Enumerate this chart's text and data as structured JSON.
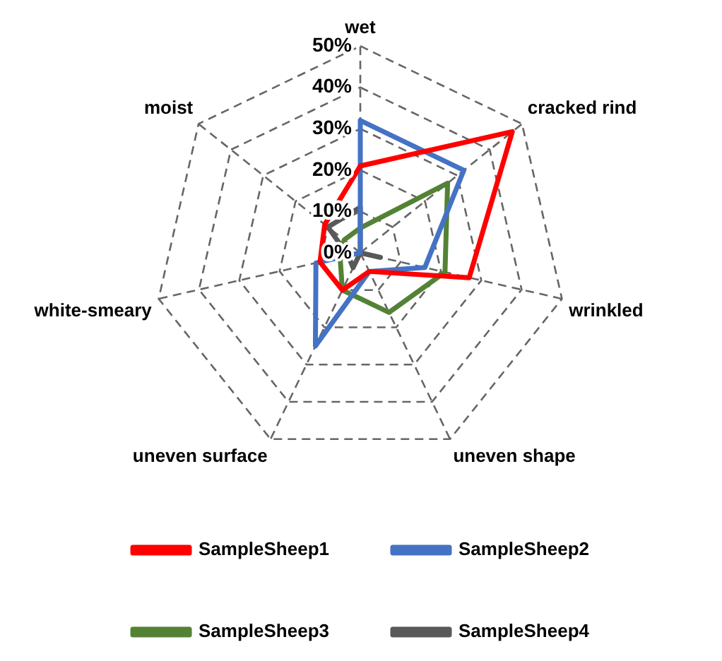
{
  "chart_data": {
    "type": "radar",
    "categories": [
      "wet",
      "cracked rind",
      "wrinkled",
      "uneven shape",
      "uneven surface",
      "white-smeary",
      "moist"
    ],
    "series": [
      {
        "name": "SampleSheep1",
        "color": "#ff0000",
        "values": [
          21,
          47,
          27,
          5,
          10,
          10,
          11
        ]
      },
      {
        "name": "SampleSheep2",
        "color": "#4472c4",
        "values": [
          32,
          32,
          16,
          5,
          25,
          11,
          0
        ]
      },
      {
        "name": "SampleSheep3",
        "color": "#548235",
        "values": [
          6,
          27,
          21,
          16,
          10,
          5,
          5
        ]
      },
      {
        "name": "SampleSheep4",
        "color": "#595959",
        "values": [
          11,
          0,
          5,
          0,
          4,
          3,
          10
        ]
      }
    ],
    "ylim": [
      0,
      50
    ],
    "yticks": [
      {
        "value": 0,
        "label": "0%"
      },
      {
        "value": 10,
        "label": "10%"
      },
      {
        "value": 20,
        "label": "20%"
      },
      {
        "value": 30,
        "label": "30%"
      },
      {
        "value": 40,
        "label": "40%"
      },
      {
        "value": 50,
        "label": "50%"
      }
    ],
    "grid": true,
    "legend": "bottom",
    "marker": "none"
  }
}
